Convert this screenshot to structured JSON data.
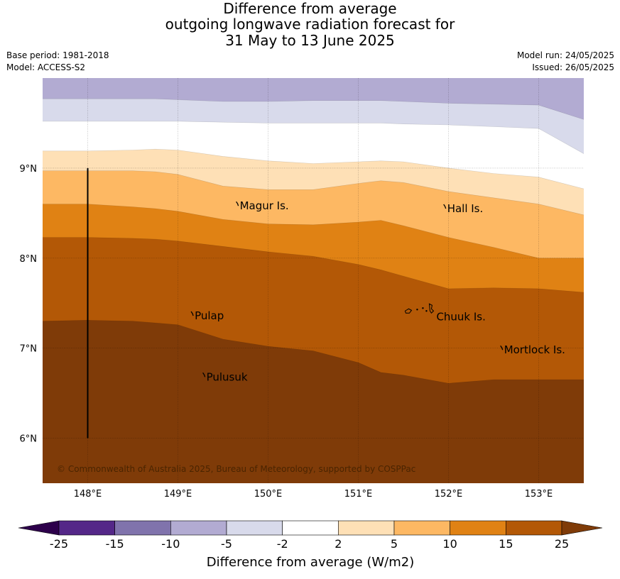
{
  "title": {
    "line1": "Difference from average",
    "line2": "outgoing longwave radiation forecast for",
    "line3": "31 May to 13 June 2025"
  },
  "info_left": {
    "base_period": "Base period: 1981-2018",
    "model": "Model: ACCESS-S2"
  },
  "info_right": {
    "model_run": "Model run: 24/05/2025",
    "issued": "Issued: 26/05/2025"
  },
  "map": {
    "lon_range": [
      147.5,
      153.5
    ],
    "lat_range": [
      5.5,
      10.0
    ],
    "lon_ticks": [
      {
        "value": 148,
        "label": "148°E"
      },
      {
        "value": 149,
        "label": "149°E"
      },
      {
        "value": 150,
        "label": "150°E"
      },
      {
        "value": 151,
        "label": "151°E"
      },
      {
        "value": 152,
        "label": "152°E"
      },
      {
        "value": 153,
        "label": "153°E"
      }
    ],
    "lat_ticks": [
      {
        "value": 9,
        "label": "9°N"
      },
      {
        "value": 8,
        "label": "8°N"
      },
      {
        "value": 7,
        "label": "7°N"
      },
      {
        "value": 6,
        "label": "6°N"
      }
    ],
    "boundary_line": {
      "lon": 148.0,
      "lat_from": 6.0,
      "lat_to": 9.0
    },
    "places": [
      {
        "name": "Magur Is.",
        "lon": 149.67,
        "lat": 8.58
      },
      {
        "name": "Hall Is.",
        "lon": 151.97,
        "lat": 8.55
      },
      {
        "name": "Pulap",
        "lon": 149.17,
        "lat": 7.36
      },
      {
        "name": "Chuuk Is.",
        "lon": 151.85,
        "lat": 7.35
      },
      {
        "name": "Mortlock Is.",
        "lon": 152.6,
        "lat": 6.98
      },
      {
        "name": "Pulusuk",
        "lon": 149.3,
        "lat": 6.68
      }
    ],
    "copyright": "© Commonwealth of Australia 2025, Bureau of Meteorology, supported by COSPPac",
    "contour_lons": [
      147.5,
      148.0,
      148.5,
      148.75,
      149.0,
      149.5,
      150.0,
      150.5,
      151.0,
      151.25,
      151.5,
      152.0,
      152.5,
      153.0,
      153.5
    ],
    "contours": [
      {
        "level": -5,
        "lats": [
          9.77,
          9.77,
          9.77,
          9.77,
          9.76,
          9.74,
          9.74,
          9.75,
          9.75,
          9.75,
          9.74,
          9.72,
          9.71,
          9.7,
          9.54
        ]
      },
      {
        "level": -2,
        "lats": [
          9.52,
          9.52,
          9.52,
          9.52,
          9.52,
          9.51,
          9.5,
          9.5,
          9.5,
          9.5,
          9.49,
          9.48,
          9.46,
          9.44,
          9.16
        ]
      },
      {
        "level": 2,
        "lats": [
          9.19,
          9.19,
          9.2,
          9.21,
          9.2,
          9.13,
          9.08,
          9.05,
          9.07,
          9.08,
          9.07,
          9.0,
          8.94,
          8.9,
          8.77
        ]
      },
      {
        "level": 5,
        "lats": [
          8.97,
          8.97,
          8.97,
          8.96,
          8.93,
          8.8,
          8.76,
          8.76,
          8.83,
          8.86,
          8.84,
          8.74,
          8.67,
          8.6,
          8.48
        ]
      },
      {
        "level": 10,
        "lats": [
          8.6,
          8.6,
          8.57,
          8.55,
          8.52,
          8.43,
          8.38,
          8.37,
          8.4,
          8.42,
          8.36,
          8.23,
          8.12,
          8.0,
          8.0
        ]
      },
      {
        "level": 15,
        "lats": [
          8.23,
          8.23,
          8.22,
          8.21,
          8.19,
          8.13,
          8.07,
          8.02,
          7.93,
          7.87,
          7.8,
          7.66,
          7.67,
          7.66,
          7.62
        ]
      },
      {
        "level": 25,
        "lats": [
          7.3,
          7.31,
          7.3,
          7.28,
          7.26,
          7.1,
          7.02,
          6.97,
          6.84,
          6.73,
          6.7,
          6.61,
          6.65,
          6.65,
          6.65
        ]
      }
    ]
  },
  "colorbar": {
    "levels": [
      "-25",
      "-15",
      "-10",
      "-5",
      "-2",
      "2",
      "5",
      "10",
      "15",
      "25"
    ],
    "colors": [
      "#2d004b",
      "#542788",
      "#8073ac",
      "#b2abd2",
      "#d8daeb",
      "#ffffff",
      "#fee0b6",
      "#fdb863",
      "#e08214",
      "#b35806",
      "#7f3b08"
    ],
    "label": "Difference from average (W/m2)"
  }
}
